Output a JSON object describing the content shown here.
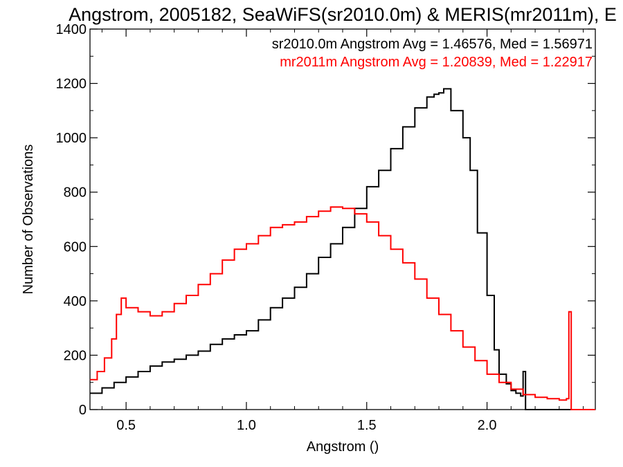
{
  "chart_data": {
    "type": "line",
    "title": "Angstrom, 2005182, SeaWiFS(sr2010.0m) & MERIS(mr2011m), E",
    "xlabel": "Angstrom ()",
    "ylabel": "Number of Observations",
    "xlim": [
      0.35,
      2.45
    ],
    "ylim": [
      0,
      1400
    ],
    "x_ticks": [
      0.5,
      1.0,
      1.5,
      2.0
    ],
    "x_tick_labels": [
      "0.5",
      "1.0",
      "1.5",
      "2.0"
    ],
    "y_ticks": [
      0,
      200,
      400,
      600,
      800,
      1000,
      1200,
      1400
    ],
    "y_tick_labels": [
      "0",
      "200",
      "400",
      "600",
      "800",
      "1000",
      "1200",
      "1400"
    ],
    "grid": false,
    "legend_placement": "top-right",
    "series": [
      {
        "name": "sr2010.0m",
        "legend_text": "sr2010.0m Angstrom Avg = 1.46576, Med = 1.56971",
        "color": "#000000",
        "x": [
          0.35,
          0.4,
          0.45,
          0.5,
          0.55,
          0.6,
          0.65,
          0.7,
          0.75,
          0.8,
          0.85,
          0.9,
          0.95,
          1.0,
          1.05,
          1.1,
          1.15,
          1.2,
          1.25,
          1.3,
          1.35,
          1.4,
          1.45,
          1.5,
          1.55,
          1.6,
          1.65,
          1.7,
          1.75,
          1.78,
          1.8,
          1.82,
          1.85,
          1.9,
          1.93,
          1.96,
          2.0,
          2.03,
          2.05,
          2.08,
          2.1,
          2.12,
          2.14,
          2.15,
          2.16,
          2.2,
          2.3,
          2.34,
          2.45
        ],
        "y": [
          60,
          80,
          100,
          120,
          140,
          160,
          175,
          185,
          200,
          215,
          240,
          260,
          275,
          290,
          330,
          375,
          410,
          450,
          500,
          560,
          610,
          670,
          740,
          820,
          880,
          960,
          1040,
          1110,
          1150,
          1160,
          1165,
          1180,
          1100,
          1000,
          880,
          650,
          420,
          220,
          130,
          95,
          70,
          60,
          50,
          140,
          0,
          0,
          0,
          0,
          0
        ]
      },
      {
        "name": "mr2011m",
        "legend_text": "mr2011m Angstrom Avg = 1.20839, Med = 1.22917",
        "color": "#ff0000",
        "x": [
          0.35,
          0.38,
          0.41,
          0.44,
          0.46,
          0.48,
          0.5,
          0.55,
          0.6,
          0.65,
          0.7,
          0.75,
          0.8,
          0.85,
          0.9,
          0.95,
          1.0,
          1.05,
          1.1,
          1.15,
          1.2,
          1.25,
          1.3,
          1.35,
          1.4,
          1.45,
          1.5,
          1.55,
          1.6,
          1.65,
          1.7,
          1.75,
          1.8,
          1.85,
          1.9,
          1.95,
          2.0,
          2.05,
          2.1,
          2.15,
          2.2,
          2.25,
          2.3,
          2.33,
          2.34,
          2.35,
          2.45
        ],
        "y": [
          110,
          140,
          190,
          260,
          350,
          410,
          375,
          360,
          345,
          360,
          390,
          420,
          460,
          500,
          550,
          590,
          610,
          640,
          670,
          680,
          690,
          710,
          730,
          745,
          740,
          720,
          690,
          640,
          590,
          540,
          480,
          410,
          350,
          290,
          230,
          180,
          130,
          100,
          75,
          55,
          45,
          40,
          35,
          40,
          360,
          0,
          0
        ]
      }
    ]
  }
}
